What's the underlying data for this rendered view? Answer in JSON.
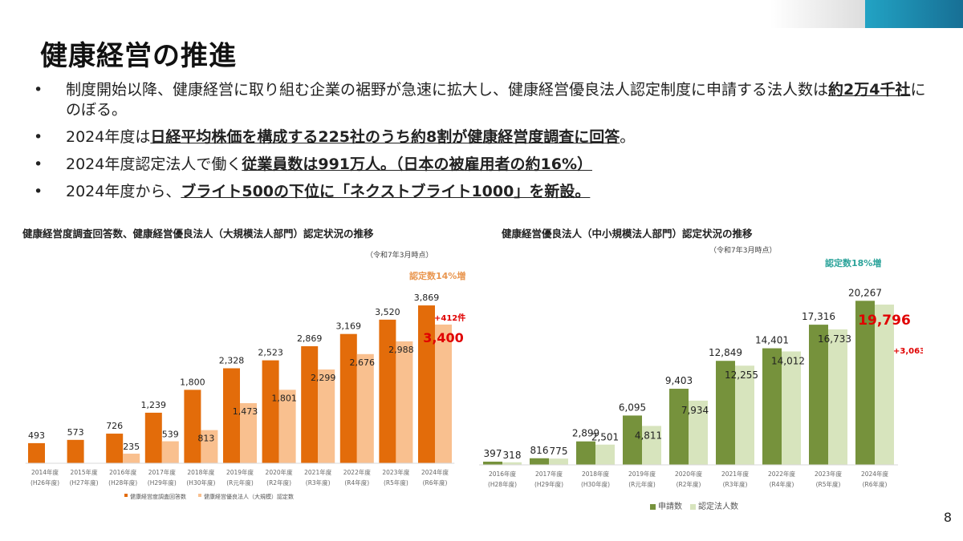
{
  "title": "健康経営の推進",
  "bullets": [
    {
      "parts": [
        {
          "t": "制度開始以降、健康経営に取り組む企業の裾野が急速に拡大し、健康経営優良法人認定制度に申請する法人数は"
        },
        {
          "t": "約2万4千社",
          "b": true
        },
        {
          "t": "にのぼる。"
        }
      ]
    },
    {
      "parts": [
        {
          "t": "2024年度は"
        },
        {
          "t": "日経平均株価を構成する225社のうち約8割が健康経営度調査に回答",
          "b": true
        },
        {
          "t": "。"
        }
      ]
    },
    {
      "parts": [
        {
          "t": "2024年度認定法人で働く"
        },
        {
          "t": "従業員数は991万人。（日本の被雇用者の約16%）",
          "b": true
        }
      ]
    },
    {
      "parts": [
        {
          "t": "2024年度から、"
        },
        {
          "t": "ブライト500の下位に「ネクストブライト1000」を新設。",
          "b": true
        }
      ]
    }
  ],
  "page_number": "8",
  "chart_data": [
    {
      "type": "bar",
      "title": "健康経営度調査回答数、健康経営優良法人（大規模法人部門）認定状況の推移",
      "note": "（令和7年3月時点）",
      "categories": [
        "2014年度|(H26年度)",
        "2015年度|(H27年度)",
        "2016年度|(H28年度)",
        "2017年度|(H29年度)",
        "2018年度|(H30年度)",
        "2019年度|(R元年度)",
        "2020年度|(R2年度)",
        "2021年度|(R3年度)",
        "2022年度|(R4年度)",
        "2023年度|(R5年度)",
        "2024年度|(R6年度)"
      ],
      "series": [
        {
          "name": "健康経営度調査回答数",
          "color": "#e36c0a",
          "values": [
            493,
            573,
            726,
            1239,
            1800,
            2328,
            2523,
            2869,
            3169,
            3520,
            3869
          ]
        },
        {
          "name": "健康経営優良法人（大規模）認定数",
          "color": "#f9c08f",
          "values": [
            null,
            null,
            235,
            539,
            813,
            1473,
            1801,
            2299,
            2676,
            2988,
            3400
          ]
        }
      ],
      "labels": [
        [
          "493",
          "573",
          "726",
          "1,239",
          "1,800",
          "2,328",
          "2,523",
          "2,869",
          "3,169",
          "3,520",
          "3,869"
        ],
        [
          "",
          "",
          "235",
          "539",
          "813",
          "1,473",
          "1,801",
          "2,299",
          "2,676",
          "2,988",
          "3,400"
        ]
      ],
      "annotations": {
        "increase": "認定数14%増",
        "diff": "+412件"
      },
      "annotation_colors": {
        "increase": "#e9964f",
        "diff": "#e00000"
      },
      "ylim": [
        0,
        4000
      ],
      "grid": false,
      "legend": "bottom"
    },
    {
      "type": "bar",
      "title": "健康経営優良法人（中小規模法人部門）認定状況の推移",
      "note": "（令和7年3月時点）",
      "categories": [
        "2016年度|(H28年度)",
        "2017年度|(H29年度)",
        "2018年度|(H30年度)",
        "2019年度|(R元年度)",
        "2020年度|(R2年度)",
        "2021年度|(R3年度)",
        "2022年度|(R4年度)",
        "2023年度|(R5年度)",
        "2024年度|(R6年度)"
      ],
      "series": [
        {
          "name": "申請数",
          "color": "#76923c",
          "values": [
            397,
            816,
            2899,
            6095,
            9403,
            12849,
            14401,
            17316,
            20267
          ]
        },
        {
          "name": "認定法人数",
          "color": "#d7e4bd",
          "values": [
            318,
            775,
            2501,
            4811,
            7934,
            12255,
            14012,
            16733,
            19796
          ]
        }
      ],
      "labels": [
        [
          "397",
          "816",
          "2,899",
          "6,095",
          "9,403",
          "12,849",
          "14,401",
          "17,316",
          "20,267"
        ],
        [
          "318",
          "775",
          "2,501",
          "4,811",
          "7,934",
          "12,255",
          "14,012",
          "16,733",
          "19,796"
        ]
      ],
      "annotations": {
        "increase": "認定数18%増",
        "diff": "+3,063件"
      },
      "annotation_colors": {
        "increase": "#2ba39a",
        "diff": "#e00000"
      },
      "ylim": [
        0,
        21000
      ],
      "grid": false,
      "legend": "bottom"
    }
  ]
}
